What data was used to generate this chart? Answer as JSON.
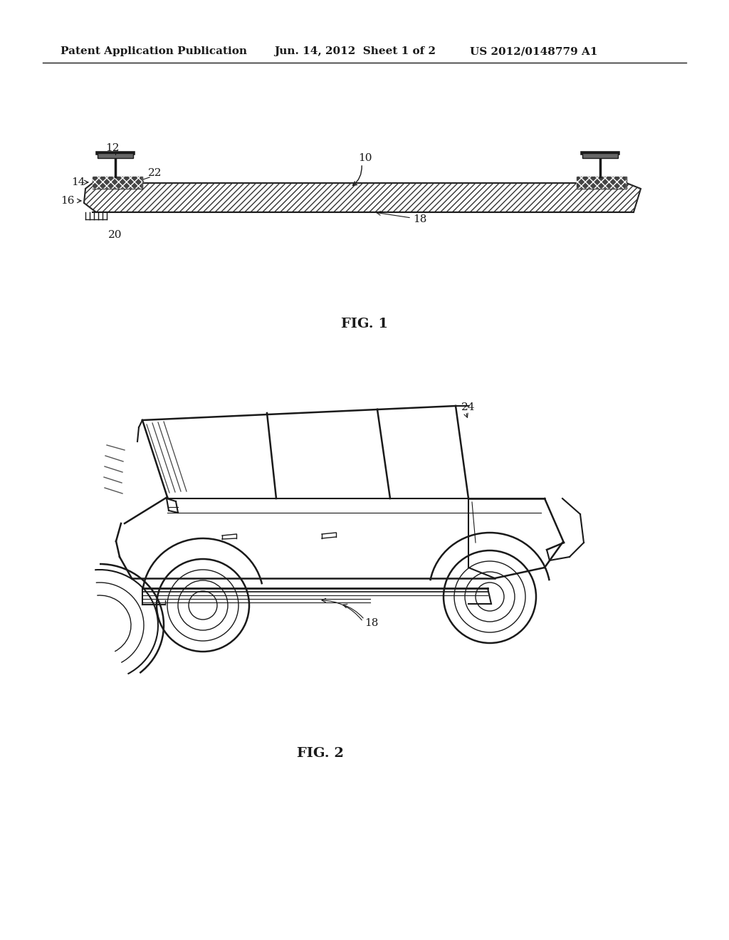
{
  "background_color": "#ffffff",
  "header_text": "Patent Application Publication",
  "header_date": "Jun. 14, 2012  Sheet 1 of 2",
  "header_patent": "US 2012/0148779 A1",
  "fig1_label": "FIG. 1",
  "fig2_label": "FIG. 2",
  "color_main": "#1a1a1a",
  "label_fontsize": 11,
  "fig_label_fontsize": 14,
  "header_fontsize": 11
}
